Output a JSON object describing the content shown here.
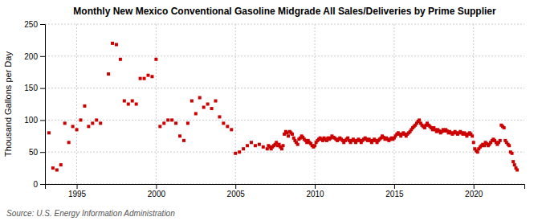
{
  "chart_data": {
    "type": "scatter",
    "title": "Monthly New Mexico Conventional Gasoline Midgrade All Sales/Deliveries by Prime Supplier",
    "ylabel": "Thousand Gallons per Day",
    "source": "Source: U.S. Energy Information Administration",
    "color": "#cc0000",
    "marker": "square",
    "grid": true,
    "xlim": [
      1993.0,
      2023.2
    ],
    "xticks": [
      1995,
      2000,
      2005,
      2010,
      2015,
      2020
    ],
    "ylim": [
      0,
      250
    ],
    "yticks": [
      0,
      50,
      100,
      150,
      200,
      250
    ],
    "x": [
      1993.25,
      1993.5,
      1993.75,
      1994.0,
      1994.25,
      1994.5,
      1994.75,
      1995.0,
      1995.25,
      1995.5,
      1995.75,
      1996.0,
      1996.25,
      1996.5,
      1997.0,
      1997.25,
      1997.5,
      1997.75,
      1998.0,
      1998.25,
      1998.5,
      1998.75,
      1999.0,
      1999.25,
      1999.5,
      1999.75,
      2000.0,
      2000.25,
      2000.5,
      2000.75,
      2001.0,
      2001.25,
      2001.5,
      2001.75,
      2002.0,
      2002.25,
      2002.5,
      2002.75,
      2003.0,
      2003.25,
      2003.5,
      2003.75,
      2004.0,
      2004.25,
      2004.5,
      2004.75,
      2005.0,
      2005.25,
      2005.5,
      2005.75,
      2006.0,
      2006.25,
      2006.5,
      2006.75,
      2007.0,
      2007.08,
      2007.17,
      2007.25,
      2007.33,
      2007.42,
      2007.5,
      2007.58,
      2007.67,
      2007.75,
      2007.83,
      2007.92,
      2008.0,
      2008.08,
      2008.17,
      2008.25,
      2008.33,
      2008.42,
      2008.5,
      2008.58,
      2008.67,
      2008.75,
      2008.83,
      2008.92,
      2009.0,
      2009.08,
      2009.17,
      2009.25,
      2009.33,
      2009.42,
      2009.5,
      2009.58,
      2009.67,
      2009.75,
      2009.83,
      2009.92,
      2010.0,
      2010.08,
      2010.17,
      2010.25,
      2010.33,
      2010.42,
      2010.5,
      2010.58,
      2010.67,
      2010.75,
      2010.83,
      2010.92,
      2011.0,
      2011.08,
      2011.17,
      2011.25,
      2011.33,
      2011.42,
      2011.5,
      2011.58,
      2011.67,
      2011.75,
      2011.83,
      2011.92,
      2012.0,
      2012.08,
      2012.17,
      2012.25,
      2012.33,
      2012.42,
      2012.5,
      2012.58,
      2012.67,
      2012.75,
      2012.83,
      2012.92,
      2013.0,
      2013.08,
      2013.17,
      2013.25,
      2013.33,
      2013.42,
      2013.5,
      2013.58,
      2013.67,
      2013.75,
      2013.83,
      2013.92,
      2014.0,
      2014.08,
      2014.17,
      2014.25,
      2014.33,
      2014.42,
      2014.5,
      2014.58,
      2014.67,
      2014.75,
      2014.83,
      2014.92,
      2015.0,
      2015.08,
      2015.17,
      2015.25,
      2015.33,
      2015.42,
      2015.5,
      2015.58,
      2015.67,
      2015.75,
      2015.83,
      2015.92,
      2016.0,
      2016.08,
      2016.17,
      2016.25,
      2016.33,
      2016.42,
      2016.5,
      2016.58,
      2016.67,
      2016.75,
      2016.83,
      2016.92,
      2017.0,
      2017.08,
      2017.17,
      2017.25,
      2017.33,
      2017.42,
      2017.5,
      2017.58,
      2017.67,
      2017.75,
      2017.83,
      2017.92,
      2018.0,
      2018.08,
      2018.17,
      2018.25,
      2018.33,
      2018.42,
      2018.5,
      2018.58,
      2018.67,
      2018.75,
      2018.83,
      2018.92,
      2019.0,
      2019.08,
      2019.17,
      2019.25,
      2019.33,
      2019.42,
      2019.5,
      2019.58,
      2019.67,
      2019.75,
      2019.83,
      2019.92,
      2020.0,
      2020.08,
      2020.17,
      2020.25,
      2020.33,
      2020.42,
      2020.5,
      2020.58,
      2020.67,
      2020.75,
      2020.83,
      2020.92,
      2021.0,
      2021.08,
      2021.17,
      2021.25,
      2021.33,
      2021.42,
      2021.5,
      2021.58,
      2021.67,
      2021.75,
      2021.83,
      2021.92,
      2022.0,
      2022.08,
      2022.17,
      2022.25,
      2022.33,
      2022.42,
      2022.5,
      2022.58,
      2022.67,
      2022.75
    ],
    "values": [
      80,
      25,
      22,
      30,
      95,
      65,
      90,
      85,
      100,
      122,
      90,
      95,
      100,
      95,
      172,
      220,
      218,
      195,
      130,
      125,
      130,
      125,
      165,
      165,
      170,
      168,
      195,
      90,
      95,
      100,
      100,
      95,
      75,
      68,
      95,
      130,
      110,
      135,
      120,
      125,
      118,
      130,
      105,
      95,
      90,
      85,
      48,
      50,
      55,
      60,
      65,
      60,
      62,
      58,
      55,
      60,
      58,
      55,
      58,
      60,
      62,
      65,
      60,
      62,
      58,
      55,
      60,
      78,
      82,
      80,
      75,
      82,
      80,
      78,
      72,
      68,
      65,
      62,
      70,
      72,
      75,
      73,
      70,
      68,
      65,
      68,
      65,
      63,
      60,
      58,
      60,
      65,
      68,
      70,
      72,
      70,
      68,
      72,
      70,
      68,
      72,
      70,
      72,
      75,
      73,
      72,
      70,
      68,
      70,
      72,
      70,
      68,
      65,
      68,
      70,
      72,
      68,
      65,
      68,
      70,
      68,
      65,
      68,
      70,
      68,
      65,
      68,
      70,
      72,
      70,
      68,
      70,
      68,
      65,
      68,
      70,
      68,
      65,
      68,
      70,
      72,
      75,
      73,
      70,
      72,
      70,
      68,
      70,
      72,
      70,
      72,
      75,
      78,
      80,
      78,
      75,
      78,
      80,
      78,
      75,
      78,
      80,
      82,
      85,
      88,
      90,
      92,
      95,
      98,
      100,
      95,
      92,
      90,
      88,
      92,
      95,
      92,
      90,
      88,
      85,
      88,
      85,
      82,
      85,
      83,
      80,
      82,
      85,
      83,
      85,
      83,
      80,
      82,
      80,
      78,
      80,
      82,
      80,
      78,
      80,
      82,
      80,
      78,
      80,
      78,
      75,
      78,
      80,
      78,
      75,
      65,
      55,
      52,
      50,
      55,
      58,
      60,
      62,
      60,
      65,
      63,
      60,
      62,
      65,
      68,
      70,
      68,
      65,
      62,
      65,
      68,
      92,
      90,
      88,
      68,
      65,
      62,
      60,
      50,
      48,
      35,
      30,
      25,
      22
    ]
  }
}
